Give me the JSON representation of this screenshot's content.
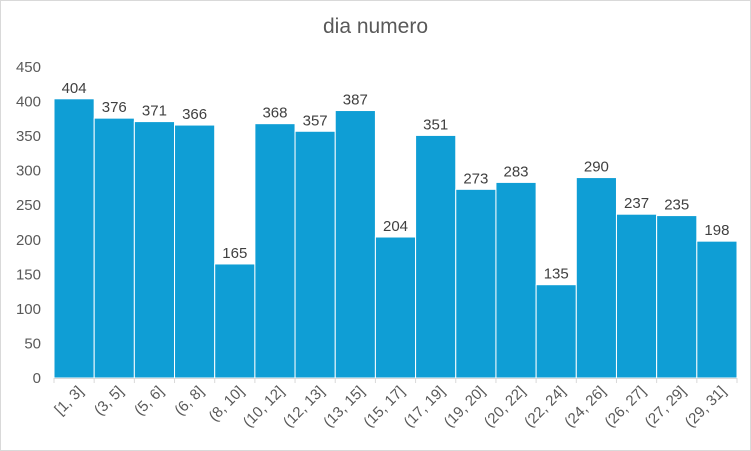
{
  "chart_data": {
    "type": "bar",
    "title": "dia numero",
    "xlabel": "",
    "ylabel": "",
    "categories": [
      "[1, 3]",
      "(3, 5]",
      "(5, 6]",
      "(6, 8]",
      "(8, 10]",
      "(10, 12]",
      "(12, 13]",
      "(13, 15]",
      "(15, 17]",
      "(17, 19]",
      "(19, 20]",
      "(20, 22]",
      "(22, 24]",
      "(24, 26]",
      "(26, 27]",
      "(27, 29]",
      "(29, 31]"
    ],
    "values": [
      404,
      376,
      371,
      366,
      165,
      368,
      357,
      387,
      204,
      351,
      273,
      283,
      135,
      290,
      237,
      235,
      198
    ],
    "ylim": [
      0,
      450
    ],
    "yticks": [
      0,
      50,
      100,
      150,
      200,
      250,
      300,
      350,
      400,
      450
    ],
    "grid": false,
    "data_labels": true,
    "bar_color": "#0f9ed5",
    "bar_edge_color": "#ffffff",
    "axis_color": "#d9d9d9",
    "text_color": "#595959"
  }
}
